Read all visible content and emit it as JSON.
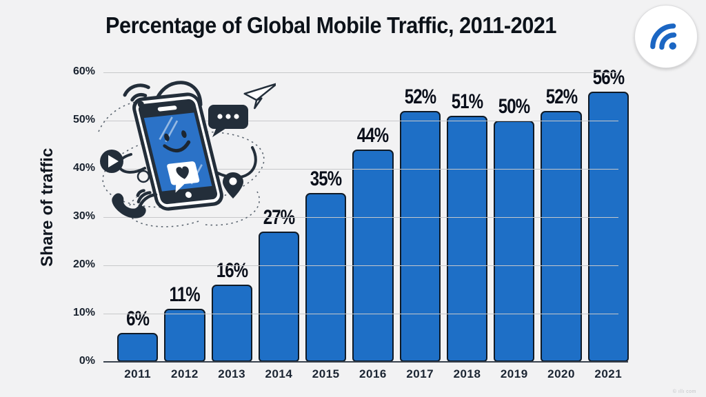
{
  "title": "Percentage of Global Mobile Traffic, 2011-2021",
  "watermark": "© ıllı com",
  "logo": {
    "icon": "wifi-icon",
    "color": "#1b66c3"
  },
  "colors": {
    "background": "#f2f2f3",
    "bar_fill": "#1e6fc6",
    "bar_border": "#0f1a26",
    "gridline": "#c7c8ca",
    "baseline": "#39424e",
    "text": "#0c1219",
    "illustration_dark": "#232e3a",
    "illustration_blue": "#2b72c7"
  },
  "chart_data": {
    "type": "bar",
    "title": "Percentage of Global Mobile Traffic, 2011-2021",
    "categories": [
      "2011",
      "2012",
      "2013",
      "2014",
      "2015",
      "2016",
      "2017",
      "2018",
      "2019",
      "2020",
      "2021"
    ],
    "values": [
      6,
      11,
      16,
      27,
      35,
      44,
      52,
      51,
      50,
      52,
      56
    ],
    "value_labels": [
      "6%",
      "11%",
      "16%",
      "27%",
      "35%",
      "44%",
      "52%",
      "51%",
      "50%",
      "52%",
      "56%"
    ],
    "xlabel": "",
    "ylabel": "Share of traffic",
    "ylim": [
      0,
      60
    ],
    "y_ticks": [
      "0%",
      "10%",
      "20%",
      "30%",
      "40%",
      "50%",
      "60%"
    ],
    "grid": true,
    "legend": false
  }
}
